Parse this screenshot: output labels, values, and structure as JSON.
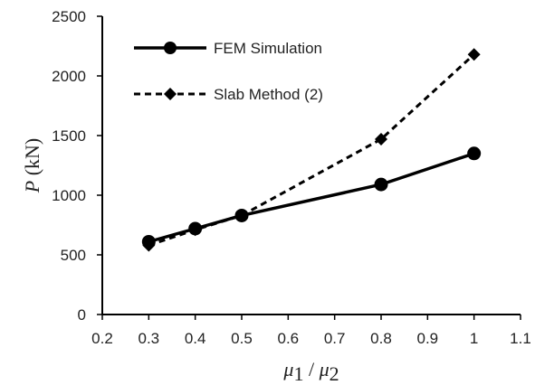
{
  "chart_data": {
    "type": "line",
    "title": "",
    "xlabel": {
      "mu1": "μ",
      "sub1": "1",
      "slash": " / ",
      "mu2": "μ",
      "sub2": "2"
    },
    "ylabel": {
      "var": "P",
      "unit": " (kN)"
    },
    "xlim": [
      0.2,
      1.1
    ],
    "ylim": [
      0,
      2500
    ],
    "x_ticks": [
      "0.2",
      "0.3",
      "0.4",
      "0.5",
      "0.6",
      "0.7",
      "0.8",
      "0.9",
      "1",
      "1.1"
    ],
    "y_ticks": [
      "0",
      "500",
      "1000",
      "1500",
      "2000",
      "2500"
    ],
    "grid": false,
    "legend_position": "top-left",
    "series": [
      {
        "name": "FEM Simulation",
        "style": "solid",
        "marker": "circle",
        "color": "#000000",
        "x": [
          0.3,
          0.4,
          0.5,
          0.8,
          1.0
        ],
        "y": [
          610,
          720,
          830,
          1090,
          1350
        ]
      },
      {
        "name": "Slab Method (2)",
        "style": "dashed",
        "marker": "diamond",
        "color": "#000000",
        "x": [
          0.3,
          0.4,
          0.5,
          0.8,
          1.0
        ],
        "y": [
          580,
          710,
          830,
          1470,
          2180
        ]
      }
    ]
  }
}
